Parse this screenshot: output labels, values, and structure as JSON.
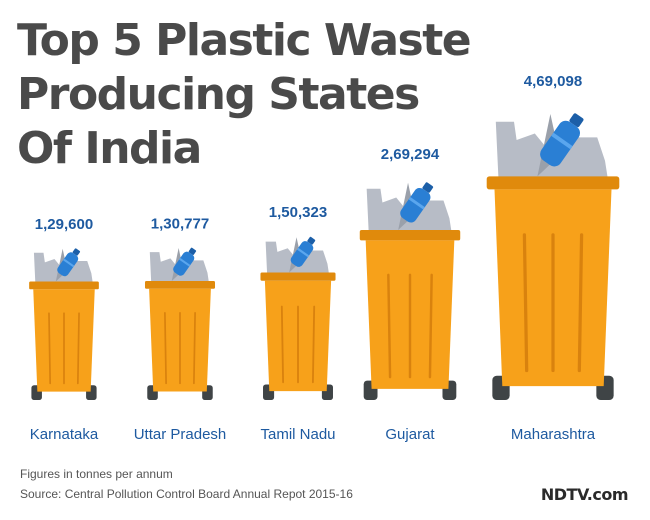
{
  "title_lines": [
    "Top 5 Plastic Waste",
    "Producing States",
    "Of India"
  ],
  "chart_data": {
    "type": "bar",
    "title": "Top 5 Plastic Waste Producing States Of India",
    "categories": [
      "Karnataka",
      "Uttar Pradesh",
      "Tamil Nadu",
      "Gujarat",
      "Maharashtra"
    ],
    "values": [
      129600,
      130777,
      150323,
      269294,
      469098
    ],
    "value_labels": [
      "1,29,600",
      "1,30,777",
      "1,50,323",
      "2,69,294",
      "4,69,098"
    ],
    "unit": "tonnes per annum",
    "xlabel": "",
    "ylabel": ""
  },
  "footnotes": {
    "units": "Figures in tonnes per annum",
    "source": "Source: Central Pollution Control Board Annual Repot 2015-16"
  },
  "brand": "NDTV.com",
  "colors": {
    "bin": "#f7a11a",
    "bin_rim": "#e08a0c",
    "bin_rib": "#d9820e",
    "wheel": "#3f4446",
    "bottle": "#2a7fd4",
    "bottle_cap": "#1c5fa8",
    "trash": "#b7bcc6",
    "value_text": "#1e5aa0",
    "label_text": "#1e5aa0",
    "title_text": "#4a4a4a"
  }
}
